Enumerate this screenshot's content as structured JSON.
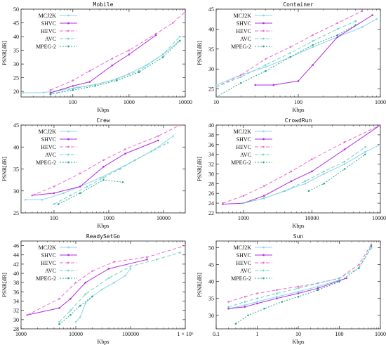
{
  "colors": {
    "MCJ2K": "#8fd3f0",
    "SHVC": "#b02ee0",
    "HEVC": "#ee6ad0",
    "AVC": "#6fd6c4",
    "MPEG-2": "#2aa88f"
  },
  "legend": [
    "MCJ2K",
    "SHVC",
    "HEVC",
    "AVC",
    "MPEG-2"
  ],
  "chart_data": [
    {
      "type": "line",
      "title": "Mobile",
      "xlabel": "Kbps",
      "ylabel": "PSNR[dB]",
      "xscale": "log",
      "xlim": [
        12,
        10000
      ],
      "ylim": [
        18,
        50
      ],
      "xticks": [
        100,
        1000,
        10000
      ],
      "xtick_labels": [
        "100",
        "1000",
        "10000"
      ],
      "yticks": [
        20,
        25,
        30,
        35,
        40,
        45,
        50
      ],
      "ytick_labels": [
        "20",
        "25",
        "30",
        "35",
        "40",
        "45",
        "50"
      ],
      "legend_position": "top-left",
      "series": [
        {
          "name": "MCJ2K",
          "x": [
            13,
            30,
            60,
            120,
            250,
            500,
            1000,
            2000,
            4000,
            8000
          ],
          "y": [
            19.5,
            19.6,
            20.5,
            21.5,
            22.5,
            24.0,
            26.5,
            29.5,
            33.5,
            38.5
          ]
        },
        {
          "name": "SHVC",
          "x": [
            40,
            100,
            200,
            500,
            1000,
            3000
          ],
          "y": [
            19.5,
            22.0,
            23.5,
            29.5,
            33.5,
            40.5
          ]
        },
        {
          "name": "HEVC",
          "x": [
            40,
            100,
            200,
            500,
            1000,
            3000,
            6000,
            10000
          ],
          "y": [
            20.5,
            24.0,
            27.5,
            32.0,
            35.0,
            41.0,
            45.0,
            49.0
          ]
        },
        {
          "name": "AVC",
          "x": [
            40,
            100,
            250,
            600,
            1500,
            4000,
            8000
          ],
          "y": [
            19.0,
            21.0,
            22.5,
            24.5,
            27.5,
            33.5,
            40.0
          ]
        },
        {
          "name": "MPEG-2",
          "x": [
            40,
            100,
            250,
            600,
            1500,
            4000,
            8000
          ],
          "y": [
            19.0,
            20.5,
            22.0,
            24.0,
            27.0,
            32.5,
            38.5
          ]
        }
      ]
    },
    {
      "type": "line",
      "title": "Container",
      "xlabel": "Kbps",
      "ylabel": "PSNR[dB]",
      "xscale": "log",
      "xlim": [
        10,
        1000
      ],
      "ylim": [
        23,
        45
      ],
      "xticks": [
        10,
        100,
        1000
      ],
      "xtick_labels": [
        "10",
        "100",
        "1000"
      ],
      "yticks": [
        25,
        30,
        35,
        40,
        45
      ],
      "ytick_labels": [
        "25",
        "30",
        "35",
        "40",
        "45"
      ],
      "legend_position": "top-left",
      "series": [
        {
          "name": "MCJ2K",
          "x": [
            10,
            20,
            40,
            80,
            150,
            300,
            600,
            900
          ],
          "y": [
            26.0,
            28.5,
            30.5,
            33.0,
            35.5,
            38.0,
            40.5,
            42.5
          ]
        },
        {
          "name": "SHVC",
          "x": [
            30,
            50,
            100,
            150,
            300,
            800
          ],
          "y": [
            26.0,
            26.0,
            27.0,
            31.0,
            38.0,
            43.5
          ]
        },
        {
          "name": "HEVC",
          "x": [
            10,
            20,
            40,
            80,
            150,
            300,
            600
          ],
          "y": [
            25.5,
            28.5,
            32.5,
            35.5,
            38.5,
            41.5,
            44.5
          ]
        },
        {
          "name": "AVC",
          "x": [
            10,
            20,
            40,
            80,
            150,
            300,
            500
          ],
          "y": [
            25.5,
            28.0,
            31.0,
            34.0,
            37.0,
            40.0,
            42.0
          ]
        },
        {
          "name": "MPEG-2",
          "x": [
            10,
            20,
            40,
            80,
            150,
            300,
            500
          ],
          "y": [
            23.0,
            26.5,
            29.5,
            33.0,
            36.0,
            38.5,
            41.0
          ]
        }
      ]
    },
    {
      "type": "line",
      "title": "Crew",
      "xlabel": "Kbps",
      "ylabel": "PSNR[dB]",
      "xscale": "log",
      "xlim": [
        25,
        25000
      ],
      "ylim": [
        25,
        45
      ],
      "xticks": [
        100,
        1000,
        10000
      ],
      "xtick_labels": [
        "100",
        "1000",
        "10000"
      ],
      "yticks": [
        25,
        30,
        35,
        40,
        45
      ],
      "ytick_labels": [
        "25",
        "30",
        "35",
        "40",
        "45"
      ],
      "legend_position": "top-left",
      "series": [
        {
          "name": "MCJ2K",
          "x": [
            30,
            60,
            150,
            300,
            700,
            1500,
            3000,
            7000,
            15000
          ],
          "y": [
            28.0,
            28.0,
            29.5,
            31.0,
            33.0,
            35.0,
            37.0,
            39.5,
            42.5
          ]
        },
        {
          "name": "SHVC",
          "x": [
            40,
            100,
            300,
            800,
            2000,
            8000
          ],
          "y": [
            29.0,
            29.5,
            31.0,
            35.5,
            38.5,
            41.5
          ]
        },
        {
          "name": "HEVC",
          "x": [
            40,
            100,
            300,
            800,
            2000,
            8000,
            20000
          ],
          "y": [
            29.0,
            31.0,
            34.0,
            37.0,
            39.5,
            42.5,
            45.0
          ]
        },
        {
          "name": "AVC",
          "x": [
            100,
            200,
            400,
            800,
            1600,
            3000,
            6000,
            12000
          ],
          "y": [
            27.0,
            29.0,
            31.0,
            33.0,
            35.0,
            37.0,
            39.0,
            41.0
          ]
        },
        {
          "name": "MPEG-2",
          "x": [
            120,
            300,
            800,
            1800
          ],
          "y": [
            27.0,
            29.5,
            32.5,
            32.0
          ]
        }
      ]
    },
    {
      "type": "line",
      "title": "CrowdRun",
      "xlabel": "Kbps",
      "ylabel": "PSNR[dB]",
      "xscale": "log",
      "xlim": [
        400,
        100000
      ],
      "ylim": [
        22,
        40
      ],
      "xticks": [
        1000,
        10000,
        100000
      ],
      "xtick_labels": [
        "1000",
        "10000",
        "100000"
      ],
      "yticks": [
        22,
        24,
        26,
        28,
        30,
        32,
        34,
        36,
        38,
        40
      ],
      "ytick_labels": [
        "22",
        "24",
        "26",
        "28",
        "30",
        "32",
        "34",
        "36",
        "38",
        "40"
      ],
      "legend_position": "top-left",
      "series": [
        {
          "name": "MCJ2K",
          "x": [
            1000,
            2000,
            4000,
            8000,
            15000,
            30000,
            60000,
            100000
          ],
          "y": [
            24.0,
            25.0,
            26.5,
            28.0,
            30.0,
            32.0,
            34.5,
            36.0
          ]
        },
        {
          "name": "SHVC",
          "x": [
            500,
            1000,
            2000,
            5000,
            10000,
            30000,
            100000
          ],
          "y": [
            23.8,
            24.0,
            25.5,
            28.5,
            30.5,
            35.0,
            40.0
          ]
        },
        {
          "name": "HEVC",
          "x": [
            500,
            1000,
            2000,
            5000,
            10000,
            30000,
            100000
          ],
          "y": [
            24.0,
            25.5,
            27.5,
            30.5,
            33.0,
            36.5,
            40.0
          ]
        },
        {
          "name": "AVC",
          "x": [
            1000,
            2000,
            4000,
            8000,
            15000,
            30000,
            60000
          ],
          "y": [
            24.0,
            25.0,
            26.5,
            28.5,
            30.5,
            32.5,
            35.5
          ]
        },
        {
          "name": "MPEG-2",
          "x": [
            9000,
            15000,
            30000,
            60000
          ],
          "y": [
            26.5,
            28.0,
            31.0,
            34.0
          ]
        }
      ]
    },
    {
      "type": "line",
      "title": "ReadySetGo",
      "xlabel": "Kbps",
      "ylabel": "PSNR[dB]",
      "xscale": "log",
      "xlim": [
        1000,
        1000000
      ],
      "ylim": [
        28,
        47
      ],
      "xticks": [
        1000,
        10000,
        100000,
        1000000
      ],
      "xtick_labels": [
        "1000",
        "10000",
        "100000",
        "1 × 10⁶"
      ],
      "yticks": [
        28,
        30,
        32,
        34,
        36,
        38,
        40,
        42,
        44,
        46
      ],
      "ytick_labels": [
        "28",
        "30",
        "32",
        "34",
        "36",
        "38",
        "40",
        "42",
        "44",
        "46"
      ],
      "legend_position": "top-left",
      "series": [
        {
          "name": "MCJ2K",
          "x": [
            10000,
            12000,
            15000,
            20000,
            30000,
            50000,
            80000,
            100000
          ],
          "y": [
            29.5,
            30.5,
            33.5,
            35.0,
            36.5,
            38.0,
            39.5,
            41.0
          ]
        },
        {
          "name": "SHVC",
          "x": [
            1300,
            5000,
            8000,
            15000,
            40000,
            200000
          ],
          "y": [
            31.0,
            32.5,
            34.5,
            38.0,
            41.0,
            43.0
          ]
        },
        {
          "name": "HEVC",
          "x": [
            1300,
            5000,
            10000,
            20000,
            50000,
            200000,
            1000000
          ],
          "y": [
            31.0,
            34.5,
            38.0,
            40.5,
            42.5,
            43.5,
            46.0
          ]
        },
        {
          "name": "AVC",
          "x": [
            5000,
            8000,
            15000,
            40000,
            100000,
            300000,
            800000
          ],
          "y": [
            29.5,
            32.0,
            35.5,
            39.0,
            41.5,
            43.0,
            44.5
          ]
        },
        {
          "name": "MPEG-2",
          "x": [
            5000,
            8000,
            12000,
            20000
          ],
          "y": [
            29.0,
            31.0,
            33.0,
            35.0
          ]
        }
      ]
    },
    {
      "type": "line",
      "title": "Sun",
      "xlabel": "Kbps",
      "ylabel": "PSNR[dB]",
      "xscale": "log",
      "xlim": [
        0.1,
        1000
      ],
      "ylim": [
        26,
        52
      ],
      "xticks": [
        0.1,
        1,
        10,
        100,
        1000
      ],
      "xtick_labels": [
        "0.1",
        "1",
        "10",
        "100",
        "1000"
      ],
      "yticks": [
        30,
        35,
        40,
        45,
        50
      ],
      "ytick_labels": [
        "30",
        "35",
        "40",
        "45",
        "50"
      ],
      "legend_position": "top-left",
      "series": [
        {
          "name": "MCJ2K",
          "x": [
            0.2,
            0.5,
            1,
            3,
            10,
            30,
            100
          ],
          "y": [
            32.0,
            33.0,
            34.0,
            35.5,
            37.0,
            38.5,
            40.5
          ]
        },
        {
          "name": "SHVC",
          "x": [
            0.2,
            0.5,
            1,
            3,
            10,
            30,
            150
          ],
          "y": [
            32.0,
            32.5,
            33.5,
            35.0,
            36.5,
            38.0,
            41.0
          ]
        },
        {
          "name": "HEVC",
          "x": [
            0.2,
            0.5,
            1,
            3,
            10,
            30,
            100,
            300,
            600
          ],
          "y": [
            34.0,
            35.5,
            36.5,
            37.5,
            38.5,
            39.5,
            41.0,
            45.0,
            51.0
          ]
        },
        {
          "name": "AVC",
          "x": [
            0.2,
            0.5,
            1,
            3,
            10,
            30,
            100,
            300,
            600
          ],
          "y": [
            32.5,
            34.0,
            35.0,
            36.5,
            38.0,
            39.5,
            41.0,
            44.0,
            50.0
          ]
        },
        {
          "name": "MPEG-2",
          "x": [
            0.3,
            0.6,
            1.5,
            4,
            10,
            30,
            100,
            300,
            600
          ],
          "y": [
            27.5,
            30.0,
            32.0,
            34.0,
            35.5,
            37.5,
            40.0,
            44.0,
            50.5
          ]
        }
      ]
    }
  ]
}
